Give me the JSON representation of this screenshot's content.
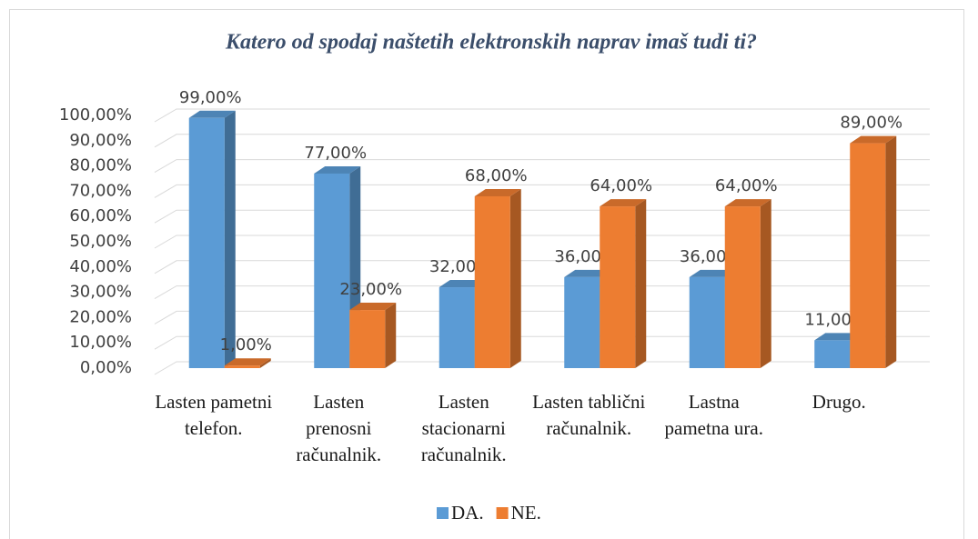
{
  "chart_data": {
    "type": "bar",
    "title": "Katero od spodaj naštetih elektronskih naprav imaš tudi ti?",
    "categories": [
      "Lasten pametni telefon.",
      "Lasten prenosni računalnik.",
      "Lasten stacionarni računalnik.",
      "Lasten tablični računalnik.",
      "Lastna pametna ura.",
      "Drugo."
    ],
    "series": [
      {
        "name": "DA.",
        "color": "#5b9bd5",
        "values": [
          99,
          77,
          32,
          36,
          36,
          11
        ],
        "value_labels": [
          "99,00%",
          "77,00%",
          "32,00%",
          "36,00%",
          "36,00%",
          "11,00%"
        ]
      },
      {
        "name": "NE.",
        "color": "#ed7d31",
        "values": [
          1,
          23,
          68,
          64,
          64,
          89
        ],
        "value_labels": [
          "1,00%",
          "23,00%",
          "68,00%",
          "64,00%",
          "64,00%",
          "89,00%"
        ]
      }
    ],
    "ylim": [
      0,
      100
    ],
    "yticks": [
      {
        "value": 0,
        "label": "0,00%"
      },
      {
        "value": 10,
        "label": "10,00%"
      },
      {
        "value": 20,
        "label": "20,00%"
      },
      {
        "value": 30,
        "label": "30,00%"
      },
      {
        "value": 40,
        "label": "40,00%"
      },
      {
        "value": 50,
        "label": "50,00%"
      },
      {
        "value": 60,
        "label": "60,00%"
      },
      {
        "value": 70,
        "label": "70,00%"
      },
      {
        "value": 80,
        "label": "80,00%"
      },
      {
        "value": 90,
        "label": "90,00%"
      },
      {
        "value": 100,
        "label": "100,00%"
      }
    ],
    "grid": true,
    "legend": "bottom"
  }
}
